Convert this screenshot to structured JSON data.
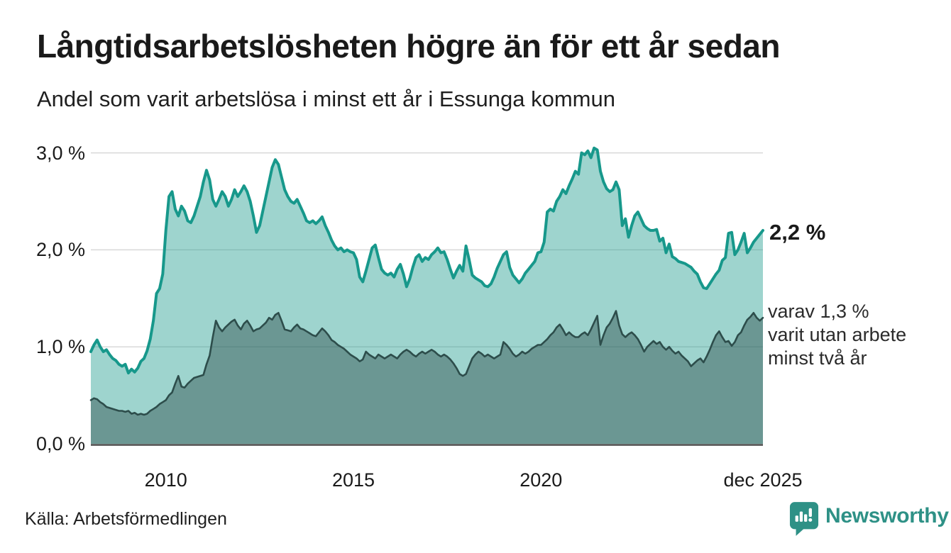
{
  "header": {
    "title": "Långtidsarbetslösheten högre än för ett år sedan",
    "subtitle": "Andel som varit arbetslösa i minst ett år i Essunga kommun"
  },
  "annotations": {
    "end_value_label": "2,2 %",
    "secondary_line1": "varav 1,3 %",
    "secondary_line2": "varit utan arbete",
    "secondary_line3": "minst två år"
  },
  "footer": {
    "source": "Källa: Arbetsförmedlingen",
    "brand": "Newsworthy"
  },
  "colors": {
    "accent_teal": "#17988b",
    "dark_slate": "#2d4d4b",
    "teal_fill": "rgba(23,152,139,0.42)",
    "dark_fill": "rgba(45,77,75,0.45)",
    "gridline": "#d9d9d9",
    "axis_line": "#4a4a4a",
    "brand_teal": "#2e9186",
    "text": "#1a1a1a"
  },
  "chart_data": {
    "type": "area",
    "title": "Långtidsarbetslösheten högre än för ett år sedan",
    "subtitle": "Andel som varit arbetslösa i minst ett år i Essunga kommun",
    "y_unit": "%",
    "ylim": [
      0,
      3.2
    ],
    "grid": "horizontal",
    "x_start": "jan 2008",
    "x_end": "dec 2025",
    "x_interval": "monthly",
    "y_ticks": [
      {
        "value": 0,
        "label": "0,0 %"
      },
      {
        "value": 1,
        "label": "1,0 %"
      },
      {
        "value": 2,
        "label": "2,0 %"
      },
      {
        "value": 3,
        "label": "3,0 %"
      }
    ],
    "x_ticks": [
      {
        "label": "2010",
        "month_index": 24
      },
      {
        "label": "2015",
        "month_index": 84
      },
      {
        "label": "2020",
        "month_index": 144
      },
      {
        "label": "dec 2025",
        "month_index": 215
      }
    ],
    "series": [
      {
        "name": "arbetslösa minst ett år",
        "end_value": 2.2,
        "end_label": "2,2 %",
        "line_color": "#17988b",
        "fill_color": "rgba(23,152,139,0.42)",
        "line_width": 4,
        "values": [
          0.95,
          1.02,
          1.07,
          1.0,
          0.95,
          0.97,
          0.92,
          0.88,
          0.86,
          0.82,
          0.8,
          0.82,
          0.73,
          0.77,
          0.74,
          0.78,
          0.85,
          0.88,
          0.96,
          1.08,
          1.27,
          1.55,
          1.6,
          1.75,
          2.2,
          2.55,
          2.6,
          2.42,
          2.35,
          2.45,
          2.4,
          2.3,
          2.28,
          2.35,
          2.45,
          2.55,
          2.7,
          2.82,
          2.72,
          2.52,
          2.45,
          2.52,
          2.6,
          2.55,
          2.45,
          2.52,
          2.62,
          2.55,
          2.6,
          2.66,
          2.6,
          2.5,
          2.35,
          2.18,
          2.25,
          2.4,
          2.55,
          2.7,
          2.85,
          2.93,
          2.88,
          2.75,
          2.62,
          2.55,
          2.5,
          2.48,
          2.52,
          2.45,
          2.38,
          2.3,
          2.28,
          2.3,
          2.27,
          2.3,
          2.34,
          2.25,
          2.18,
          2.1,
          2.04,
          2.0,
          2.02,
          1.98,
          2.0,
          1.98,
          1.97,
          1.9,
          1.72,
          1.67,
          1.78,
          1.9,
          2.02,
          2.05,
          1.92,
          1.8,
          1.76,
          1.74,
          1.76,
          1.72,
          1.8,
          1.85,
          1.75,
          1.62,
          1.7,
          1.82,
          1.92,
          1.95,
          1.88,
          1.92,
          1.9,
          1.95,
          1.98,
          2.02,
          1.97,
          1.98,
          1.9,
          1.8,
          1.71,
          1.78,
          1.84,
          1.78,
          2.04,
          1.9,
          1.74,
          1.71,
          1.69,
          1.67,
          1.63,
          1.62,
          1.65,
          1.72,
          1.81,
          1.88,
          1.95,
          1.98,
          1.82,
          1.74,
          1.7,
          1.66,
          1.7,
          1.76,
          1.8,
          1.84,
          1.88,
          1.97,
          1.98,
          2.08,
          2.39,
          2.42,
          2.4,
          2.5,
          2.55,
          2.62,
          2.58,
          2.66,
          2.73,
          2.81,
          2.78,
          3.0,
          2.98,
          3.02,
          2.95,
          3.05,
          3.03,
          2.81,
          2.7,
          2.63,
          2.6,
          2.62,
          2.7,
          2.62,
          2.25,
          2.32,
          2.13,
          2.25,
          2.35,
          2.39,
          2.32,
          2.25,
          2.22,
          2.2,
          2.2,
          2.21,
          2.09,
          2.12,
          1.97,
          2.06,
          1.93,
          1.91,
          1.88,
          1.87,
          1.86,
          1.84,
          1.82,
          1.78,
          1.75,
          1.67,
          1.61,
          1.6,
          1.65,
          1.7,
          1.75,
          1.79,
          1.89,
          1.92,
          2.17,
          2.18,
          1.95,
          2.0,
          2.08,
          2.17,
          1.97,
          2.02,
          2.08,
          2.12,
          2.16,
          2.2
        ]
      },
      {
        "name": "varav utan arbete minst två år",
        "end_value": 1.3,
        "end_label": "varav 1,3 % varit utan arbete minst två år",
        "line_color": "#2d4d4b",
        "fill_color": "rgba(45,77,75,0.45)",
        "line_width": 2.6,
        "values": [
          0.45,
          0.47,
          0.46,
          0.43,
          0.41,
          0.38,
          0.37,
          0.36,
          0.35,
          0.34,
          0.34,
          0.33,
          0.34,
          0.31,
          0.32,
          0.3,
          0.31,
          0.3,
          0.31,
          0.34,
          0.36,
          0.38,
          0.41,
          0.43,
          0.45,
          0.5,
          0.53,
          0.62,
          0.7,
          0.59,
          0.58,
          0.62,
          0.65,
          0.68,
          0.69,
          0.7,
          0.71,
          0.82,
          0.91,
          1.1,
          1.27,
          1.2,
          1.16,
          1.2,
          1.23,
          1.26,
          1.28,
          1.22,
          1.18,
          1.24,
          1.27,
          1.22,
          1.16,
          1.18,
          1.19,
          1.22,
          1.25,
          1.3,
          1.28,
          1.33,
          1.35,
          1.27,
          1.18,
          1.17,
          1.16,
          1.2,
          1.23,
          1.19,
          1.18,
          1.16,
          1.14,
          1.12,
          1.11,
          1.15,
          1.19,
          1.16,
          1.12,
          1.07,
          1.05,
          1.02,
          1.0,
          0.98,
          0.95,
          0.92,
          0.9,
          0.88,
          0.85,
          0.87,
          0.95,
          0.92,
          0.9,
          0.88,
          0.92,
          0.9,
          0.88,
          0.9,
          0.92,
          0.9,
          0.88,
          0.92,
          0.95,
          0.97,
          0.95,
          0.92,
          0.9,
          0.93,
          0.95,
          0.93,
          0.95,
          0.97,
          0.95,
          0.92,
          0.9,
          0.92,
          0.9,
          0.87,
          0.83,
          0.78,
          0.72,
          0.7,
          0.72,
          0.8,
          0.88,
          0.92,
          0.95,
          0.93,
          0.9,
          0.92,
          0.9,
          0.88,
          0.9,
          0.92,
          1.05,
          1.02,
          0.98,
          0.93,
          0.9,
          0.92,
          0.95,
          0.93,
          0.95,
          0.98,
          1.0,
          1.02,
          1.02,
          1.05,
          1.08,
          1.12,
          1.15,
          1.2,
          1.23,
          1.18,
          1.12,
          1.15,
          1.12,
          1.1,
          1.1,
          1.13,
          1.15,
          1.12,
          1.18,
          1.25,
          1.32,
          1.02,
          1.12,
          1.2,
          1.24,
          1.3,
          1.37,
          1.22,
          1.13,
          1.1,
          1.13,
          1.15,
          1.12,
          1.08,
          1.02,
          0.95,
          1.0,
          1.03,
          1.06,
          1.03,
          1.05,
          1.0,
          0.97,
          1.0,
          0.96,
          0.93,
          0.95,
          0.91,
          0.88,
          0.85,
          0.8,
          0.83,
          0.86,
          0.88,
          0.84,
          0.9,
          0.97,
          1.05,
          1.12,
          1.16,
          1.1,
          1.05,
          1.06,
          1.01,
          1.05,
          1.12,
          1.15,
          1.22,
          1.28,
          1.31,
          1.35,
          1.3,
          1.27,
          1.3
        ]
      }
    ]
  }
}
